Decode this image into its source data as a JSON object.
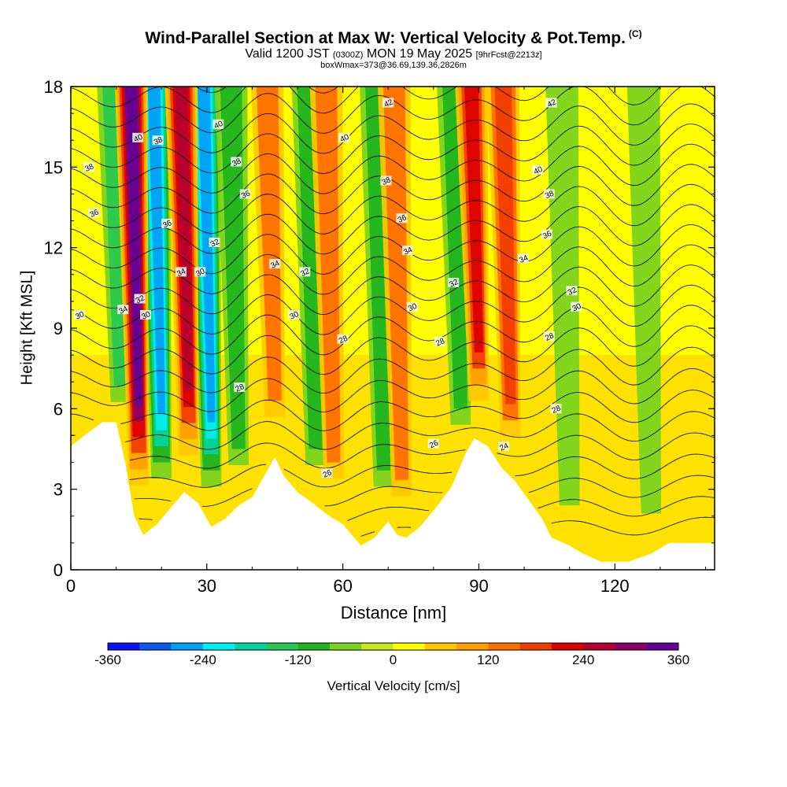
{
  "title": "Wind-Parallel Section at Max W: Vertical Velocity & Pot.Temp.",
  "title_mark": "(C)",
  "subtitle_main": "Valid 1200 JST",
  "subtitle_utc": "(0300Z)",
  "subtitle_date": "MON 19 May 2025",
  "subtitle_fcst": "[9hrFcst@2213z]",
  "subtitle2": "boxWmax=373@36.69,139.36,2826m",
  "chart_data": {
    "type": "heatmap",
    "xlabel": "Distance [nm]",
    "ylabel": "Height [Kft MSL]",
    "xlim": [
      0,
      142
    ],
    "ylim": [
      0,
      18
    ],
    "xticks": [
      0,
      30,
      60,
      90,
      120
    ],
    "yticks": [
      0,
      3,
      6,
      9,
      12,
      15,
      18
    ],
    "colorbar": {
      "label": "Vertical Velocity [cm/s]",
      "ticks": [
        -360,
        -240,
        -120,
        0,
        120,
        240,
        360
      ],
      "range": [
        -360,
        360
      ],
      "colors": [
        "#0a14f0",
        "#0a5af0",
        "#00a0f5",
        "#00f0f0",
        "#00d2a0",
        "#28c850",
        "#1eb41e",
        "#78d21e",
        "#c8e61e",
        "#ffff00",
        "#ffc800",
        "#ffa000",
        "#ff6e00",
        "#f03c00",
        "#dc0000",
        "#b40032",
        "#8c0064",
        "#640096"
      ]
    },
    "terrain_kft": [
      [
        0,
        4.6
      ],
      [
        3,
        5.0
      ],
      [
        7,
        5.5
      ],
      [
        10,
        5.5
      ],
      [
        12,
        4.0
      ],
      [
        14,
        2.0
      ],
      [
        16,
        1.3
      ],
      [
        19,
        1.7
      ],
      [
        22,
        2.3
      ],
      [
        25,
        2.9
      ],
      [
        28,
        2.5
      ],
      [
        31,
        1.6
      ],
      [
        34,
        1.9
      ],
      [
        37,
        2.4
      ],
      [
        40,
        2.7
      ],
      [
        43,
        3.6
      ],
      [
        45,
        4.2
      ],
      [
        47,
        3.5
      ],
      [
        50,
        2.9
      ],
      [
        54,
        2.4
      ],
      [
        57,
        2.0
      ],
      [
        60,
        1.7
      ],
      [
        62,
        1.3
      ],
      [
        64,
        0.9
      ],
      [
        67,
        1.2
      ],
      [
        70,
        1.8
      ],
      [
        72,
        1.3
      ],
      [
        74,
        1.2
      ],
      [
        77,
        1.6
      ],
      [
        80,
        2.2
      ],
      [
        84,
        3.1
      ],
      [
        87,
        4.3
      ],
      [
        89,
        4.9
      ],
      [
        92,
        4.6
      ],
      [
        95,
        3.8
      ],
      [
        98,
        3.3
      ],
      [
        101,
        2.6
      ],
      [
        104,
        1.9
      ],
      [
        106,
        1.2
      ],
      [
        110,
        0.9
      ],
      [
        113,
        0.6
      ],
      [
        117,
        0.3
      ],
      [
        123,
        0.3
      ],
      [
        128,
        0.6
      ],
      [
        132,
        1.0
      ],
      [
        136,
        1.0
      ],
      [
        142,
        1.0
      ]
    ],
    "updrafts": [
      {
        "x": 15,
        "w": 340
      },
      {
        "x": 26,
        "w": 270
      },
      {
        "x": 45,
        "w": 120
      },
      {
        "x": 58,
        "w": 130
      },
      {
        "x": 73,
        "w": 140
      },
      {
        "x": 90,
        "w": 230
      },
      {
        "x": 97,
        "w": 180
      }
    ],
    "downdrafts": [
      {
        "x": 20,
        "w": -270
      },
      {
        "x": 31,
        "w": -270
      },
      {
        "x": 11,
        "w": -130
      },
      {
        "x": 37,
        "w": -120
      },
      {
        "x": 54,
        "w": -110
      },
      {
        "x": 69,
        "w": -120
      },
      {
        "x": 86,
        "w": -100
      },
      {
        "x": 110,
        "w": -60
      },
      {
        "x": 128,
        "w": -50
      }
    ],
    "contour_labels": [
      {
        "text": "40",
        "x": 14.8,
        "y": 16.1
      },
      {
        "text": "38",
        "x": 19.2,
        "y": 16.0
      },
      {
        "text": "40",
        "x": 32.5,
        "y": 16.6
      },
      {
        "text": "42",
        "x": 70.0,
        "y": 17.4
      },
      {
        "text": "42",
        "x": 106.0,
        "y": 17.4
      },
      {
        "text": "40",
        "x": 60.3,
        "y": 16.1
      },
      {
        "text": "38",
        "x": 4.0,
        "y": 15.0
      },
      {
        "text": "38",
        "x": 36.5,
        "y": 15.2
      },
      {
        "text": "38",
        "x": 69.5,
        "y": 14.5
      },
      {
        "text": "40",
        "x": 103.0,
        "y": 14.9
      },
      {
        "text": "38",
        "x": 105.5,
        "y": 14.0
      },
      {
        "text": "36",
        "x": 5.1,
        "y": 13.3
      },
      {
        "text": "36",
        "x": 38.5,
        "y": 14.0
      },
      {
        "text": "36",
        "x": 21.2,
        "y": 12.9
      },
      {
        "text": "36",
        "x": 73.0,
        "y": 13.1
      },
      {
        "text": "36",
        "x": 105.0,
        "y": 12.5
      },
      {
        "text": "32",
        "x": 31.7,
        "y": 12.2
      },
      {
        "text": "34",
        "x": 74.3,
        "y": 11.9
      },
      {
        "text": "34",
        "x": 99.8,
        "y": 11.6
      },
      {
        "text": "34",
        "x": 45.0,
        "y": 11.4
      },
      {
        "text": "32",
        "x": 51.6,
        "y": 11.1
      },
      {
        "text": "34",
        "x": 24.3,
        "y": 11.1
      },
      {
        "text": "30",
        "x": 28.5,
        "y": 11.1
      },
      {
        "text": "32",
        "x": 84.4,
        "y": 10.7
      },
      {
        "text": "32",
        "x": 110.5,
        "y": 10.4
      },
      {
        "text": "32",
        "x": 15.2,
        "y": 10.1
      },
      {
        "text": "34",
        "x": 11.5,
        "y": 9.7
      },
      {
        "text": "30",
        "x": 1.9,
        "y": 9.5
      },
      {
        "text": "30",
        "x": 16.5,
        "y": 9.5
      },
      {
        "text": "30",
        "x": 49.2,
        "y": 9.5
      },
      {
        "text": "30",
        "x": 75.3,
        "y": 9.8
      },
      {
        "text": "30",
        "x": 111.5,
        "y": 9.8
      },
      {
        "text": "28",
        "x": 60.0,
        "y": 8.6
      },
      {
        "text": "28",
        "x": 81.4,
        "y": 8.5
      },
      {
        "text": "28",
        "x": 105.5,
        "y": 8.7
      },
      {
        "text": "28",
        "x": 37.2,
        "y": 6.8
      },
      {
        "text": "28",
        "x": 107.0,
        "y": 6.0
      },
      {
        "text": "26",
        "x": 80.0,
        "y": 4.7
      },
      {
        "text": "24",
        "x": 95.5,
        "y": 4.6
      },
      {
        "text": "26",
        "x": 56.5,
        "y": 3.6
      }
    ]
  }
}
